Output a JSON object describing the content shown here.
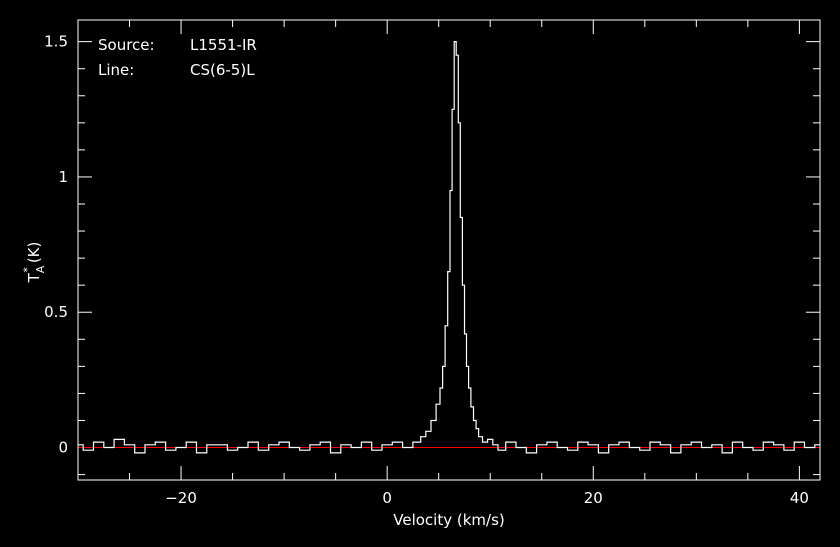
{
  "chart_data": {
    "type": "line",
    "title": "",
    "annotations": [
      {
        "label": "Source:",
        "value": "L1551-IR"
      },
      {
        "label": "Line:",
        "value": "CS(6-5)L"
      }
    ],
    "xlabel": "Velocity (km/s)",
    "ylabel_base": "T",
    "ylabel_sup": "*",
    "ylabel_sub": "A",
    "ylabel_unit": "(K)",
    "xlim": [
      -30,
      42
    ],
    "ylim": [
      -0.12,
      1.58
    ],
    "xticks": [
      -20,
      0,
      20,
      40
    ],
    "xtick_labels": [
      "−20",
      "0",
      "20",
      "40"
    ],
    "yticks": [
      0,
      0.5,
      1,
      1.5
    ],
    "ytick_labels": [
      "0",
      "0.5",
      "1",
      "1.5"
    ],
    "baseline": 0,
    "grid": false,
    "colors": {
      "background": "#000000",
      "axes": "#ffffff",
      "spectrum": "#ffffff",
      "baseline": "#ff0000"
    },
    "series": [
      {
        "style": "histogram",
        "x": [
          -30.0,
          -29.0,
          -28.0,
          -27.0,
          -26.0,
          -25.0,
          -24.0,
          -23.0,
          -22.0,
          -21.0,
          -20.0,
          -19.0,
          -18.0,
          -17.0,
          -16.0,
          -15.0,
          -14.0,
          -13.0,
          -12.0,
          -11.0,
          -10.0,
          -9.0,
          -8.0,
          -7.0,
          -6.0,
          -5.0,
          -4.0,
          -3.0,
          -2.0,
          -1.0,
          0.0,
          1.0,
          2.0,
          3.0,
          3.5,
          4.0,
          4.5,
          5.0,
          5.25,
          5.5,
          5.75,
          6.0,
          6.2,
          6.4,
          6.6,
          6.8,
          7.0,
          7.2,
          7.4,
          7.6,
          7.8,
          8.0,
          8.25,
          8.5,
          8.75,
          9.0,
          9.5,
          10.0,
          10.5,
          11.0,
          12.0,
          13.0,
          14.0,
          15.0,
          16.0,
          17.0,
          18.0,
          19.0,
          20.0,
          21.0,
          22.0,
          23.0,
          24.0,
          25.0,
          26.0,
          27.0,
          28.0,
          29.0,
          30.0,
          31.0,
          32.0,
          33.0,
          34.0,
          35.0,
          36.0,
          37.0,
          38.0,
          39.0,
          40.0,
          41.0,
          42.0
        ],
        "y": [
          0.01,
          -0.01,
          0.02,
          0.0,
          0.03,
          0.01,
          -0.02,
          0.01,
          0.02,
          -0.01,
          0.0,
          0.02,
          -0.02,
          0.01,
          0.01,
          -0.01,
          0.0,
          0.02,
          -0.01,
          0.01,
          0.02,
          0.0,
          -0.01,
          0.01,
          0.02,
          -0.02,
          0.01,
          0.0,
          0.02,
          -0.01,
          0.01,
          0.02,
          0.0,
          0.02,
          0.04,
          0.06,
          0.1,
          0.16,
          0.22,
          0.3,
          0.45,
          0.65,
          0.95,
          1.25,
          1.5,
          1.45,
          1.2,
          0.85,
          0.6,
          0.42,
          0.3,
          0.22,
          0.15,
          0.1,
          0.07,
          0.04,
          0.02,
          0.03,
          0.01,
          -0.01,
          0.02,
          0.0,
          -0.02,
          0.01,
          0.02,
          0.0,
          -0.01,
          0.02,
          0.01,
          -0.02,
          0.01,
          0.02,
          0.0,
          -0.01,
          0.02,
          0.01,
          -0.02,
          0.01,
          0.02,
          0.0,
          0.01,
          -0.02,
          0.02,
          0.0,
          -0.01,
          0.02,
          0.01,
          -0.01,
          0.02,
          0.0,
          0.01
        ]
      }
    ]
  }
}
